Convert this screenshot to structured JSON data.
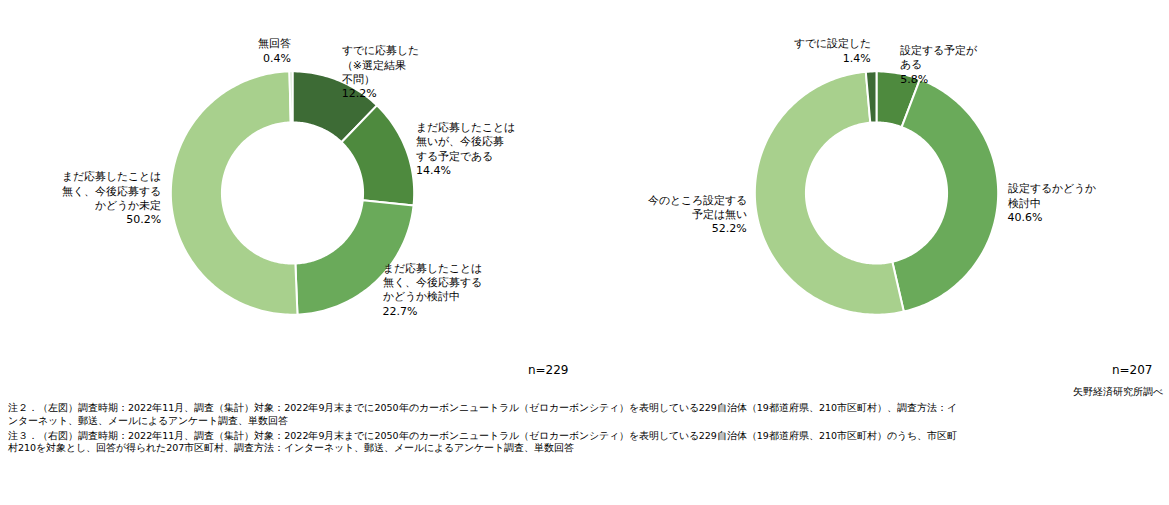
{
  "chart_data": [
    {
      "type": "donut",
      "categories": [
        "すでに応募した\n（※選定結果\n不問）",
        "まだ応募したことは\n無いが、今後応募\nする予定である",
        "まだ応募したことは\n無く、今後応募する\nかどうか検討中",
        "まだ応募したことは\n無く、今後応募する\nかどうか未定",
        "無回答"
      ],
      "values": [
        12.2,
        14.4,
        22.7,
        50.2,
        0.4
      ],
      "value_labels": [
        "12.2%",
        "14.4%",
        "22.7%",
        "50.2%",
        "0.4%"
      ],
      "colors": [
        "#3d6b35",
        "#4e8a3e",
        "#6aaa5a",
        "#a8d08d",
        "#c8dfc0"
      ],
      "data_labels": true,
      "annotations": [
        "n=229"
      ]
    },
    {
      "type": "donut",
      "categories": [
        "設定する予定が\nある",
        "設定するかどうか\n検討中",
        "今のところ設定する\n予定は無い",
        "すでに設定した"
      ],
      "values": [
        5.8,
        40.6,
        52.2,
        1.4
      ],
      "value_labels": [
        "5.8%",
        "40.6%",
        "52.2%",
        "1.4%"
      ],
      "colors": [
        "#4e8a3e",
        "#6aaa5a",
        "#a8d08d",
        "#3d6b35"
      ],
      "data_labels": true,
      "annotations": [
        "n=207"
      ]
    }
  ],
  "source": "矢野経済研究所調べ",
  "notes": [
    "注２．（左図）調査時期：2022年11月、調査（集計）対象：2022年9月末までに2050年のカーボンニュートラル（ゼロカーボンシティ）を表明している229自治体（19都道府県、210市区町村）、調査方法：イ\nンターネット、郵送、メールによるアンケート調査、単数回答",
    "注３．（右図）調査時期：2022年11月、調査（集計）対象：2022年9月末までに2050年のカーボンニュートラル（ゼロカーボンシティ）を表明している229自治体（19都道府県、210市区町村）のうち、市区町\n村210を対象とし、回答が得られた207市区町村、調査方法：インターネット、郵送、メールによるアンケート調査、単数回答"
  ]
}
